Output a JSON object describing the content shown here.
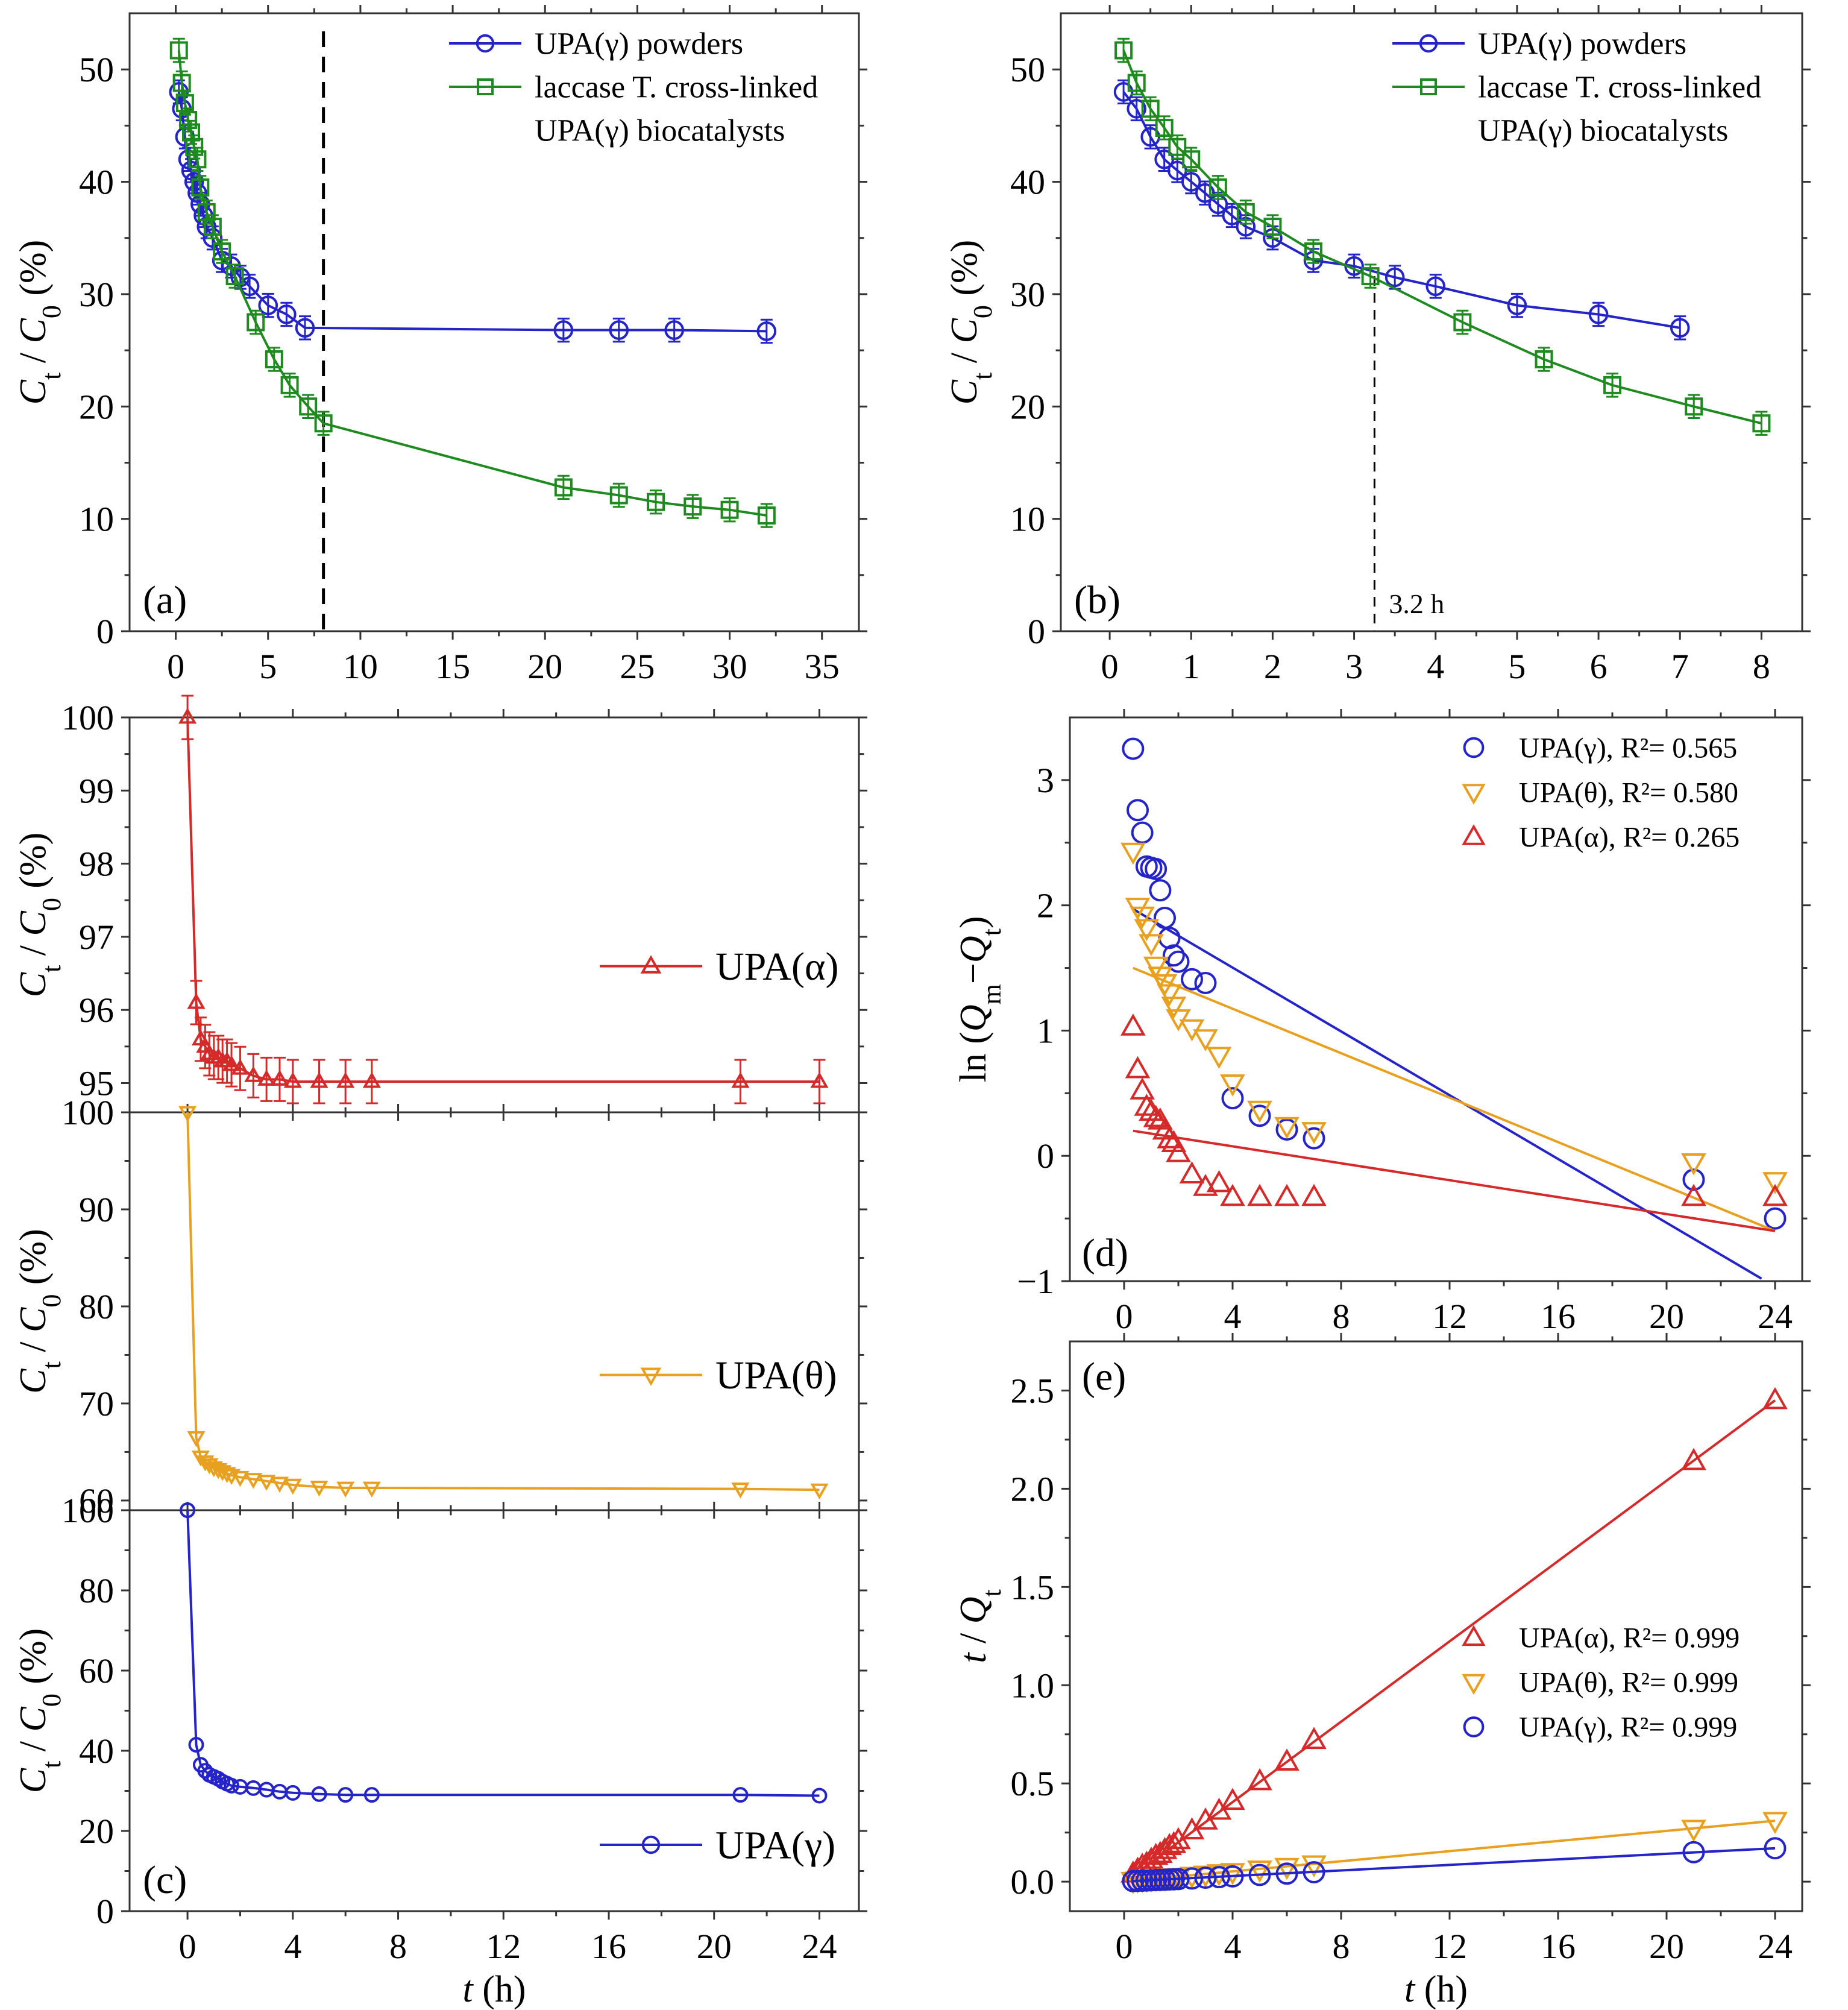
{
  "colors": {
    "blue": "#2424c8",
    "green": "#1f8a1f",
    "orange": "#e8a020",
    "red": "#d42a2a",
    "black": "#000000"
  },
  "chart_data": [
    {
      "id": "a",
      "type": "line",
      "panel_label": "(a)",
      "ylabel": "C_t / C_0 (%)",
      "xlim": [
        -2.5,
        37
      ],
      "ylim": [
        0,
        55
      ],
      "xticks": [
        0,
        5,
        10,
        15,
        20,
        25,
        30,
        35
      ],
      "yticks": [
        0,
        10,
        20,
        30,
        40,
        50
      ],
      "legend_position": "top-right",
      "reference_line": {
        "x": 8
      },
      "series": [
        {
          "name": "UPA(γ) powders",
          "color": "blue",
          "marker": "circle",
          "errorbars": true,
          "connect": true,
          "x": [
            0.17,
            0.33,
            0.5,
            0.67,
            0.83,
            1,
            1.17,
            1.33,
            1.5,
            1.67,
            2,
            2.5,
            3,
            3.5,
            4,
            5,
            6,
            7,
            21,
            24,
            27,
            32
          ],
          "y": [
            48,
            46.5,
            44,
            42,
            41,
            40,
            39,
            38,
            37,
            36,
            35,
            33,
            32.5,
            31.5,
            30.7,
            29,
            28.2,
            27,
            26.8,
            26.8,
            26.8,
            26.7
          ]
        },
        {
          "name": "laccase T. cross-linked UPA(γ) biocatalysts",
          "color": "green",
          "marker": "square",
          "errorbars": true,
          "connect": true,
          "x": [
            0.17,
            0.33,
            0.5,
            0.67,
            0.83,
            1,
            1.17,
            1.33,
            1.67,
            2,
            2.5,
            3.2,
            4.33,
            5.33,
            6.17,
            7.17,
            8,
            21,
            24,
            26,
            28,
            30,
            32
          ],
          "y": [
            51.7,
            48.8,
            47,
            45.5,
            44.4,
            43.1,
            42,
            39.5,
            37.3,
            36,
            33.8,
            31.6,
            27.5,
            24.2,
            21.9,
            20,
            18.5,
            12.8,
            12.1,
            11.5,
            11.1,
            10.8,
            10.3
          ]
        }
      ]
    },
    {
      "id": "b",
      "type": "line",
      "panel_label": "(b)",
      "ylabel": "C_t / C_0 (%)",
      "xlim": [
        -0.6,
        8.5
      ],
      "ylim": [
        0,
        55
      ],
      "xticks": [
        0,
        1,
        2,
        3,
        4,
        5,
        6,
        7,
        8
      ],
      "yticks": [
        0,
        10,
        20,
        30,
        40,
        50
      ],
      "legend_position": "top-right",
      "reference_line": {
        "x": 3.25,
        "label": "3.2 h"
      },
      "series": [
        {
          "name": "UPA(γ) powders",
          "color": "blue",
          "marker": "circle",
          "errorbars": true,
          "connect": true,
          "x": [
            0.17,
            0.33,
            0.5,
            0.67,
            0.83,
            1,
            1.17,
            1.33,
            1.5,
            1.67,
            2,
            2.5,
            3,
            3.5,
            4,
            5,
            6,
            7
          ],
          "y": [
            48,
            46.5,
            44,
            42,
            41,
            40,
            39,
            38,
            37,
            36,
            35,
            33,
            32.5,
            31.5,
            30.7,
            29,
            28.2,
            27
          ]
        },
        {
          "name": "laccase T. cross-linked UPA(γ) biocatalysts",
          "color": "green",
          "marker": "square",
          "errorbars": true,
          "connect": true,
          "x": [
            0.17,
            0.33,
            0.5,
            0.67,
            0.83,
            1,
            1.33,
            1.67,
            2,
            2.5,
            3.2,
            4.33,
            5.33,
            6.17,
            7.17,
            8
          ],
          "y": [
            51.7,
            48.8,
            46.5,
            44.8,
            43.1,
            42,
            39.5,
            37.3,
            36,
            33.8,
            31.6,
            27.5,
            24.2,
            21.9,
            20,
            18.5
          ]
        }
      ]
    },
    {
      "id": "c1",
      "type": "line",
      "ylabel": "C_t / C_0 (%)",
      "xlim": [
        -2.2,
        25.5
      ],
      "ylim": [
        94.6,
        100
      ],
      "xticks": [
        0,
        4,
        8,
        12,
        16,
        20,
        24
      ],
      "yticks": [
        95,
        96,
        97,
        98,
        99,
        100
      ],
      "legend_position": "right",
      "series": [
        {
          "name": "UPA(α)",
          "color": "red",
          "marker": "triangle-up",
          "errorbars": true,
          "connect": true,
          "x": [
            0,
            0.33,
            0.5,
            0.67,
            0.83,
            1,
            1.17,
            1.33,
            1.5,
            1.67,
            2,
            2.5,
            3,
            3.5,
            4,
            5,
            6,
            7,
            21,
            24
          ],
          "y": [
            100,
            96.1,
            95.6,
            95.5,
            95.4,
            95.35,
            95.35,
            95.3,
            95.3,
            95.25,
            95.2,
            95.1,
            95.05,
            95.05,
            95.02,
            95.02,
            95.02,
            95.02,
            95.02,
            95.02
          ]
        }
      ]
    },
    {
      "id": "c2",
      "type": "line",
      "ylabel": "C_t / C_0 (%)",
      "xlim": [
        -2.2,
        25.5
      ],
      "ylim": [
        59,
        100
      ],
      "xticks": [
        0,
        4,
        8,
        12,
        16,
        20,
        24
      ],
      "yticks": [
        60,
        70,
        80,
        90,
        100
      ],
      "legend_position": "right",
      "series": [
        {
          "name": "UPA(θ)",
          "color": "orange",
          "marker": "triangle-down",
          "errorbars": false,
          "connect": true,
          "x": [
            0,
            0.33,
            0.5,
            0.67,
            0.83,
            1,
            1.17,
            1.33,
            1.5,
            1.67,
            2,
            2.5,
            3,
            3.5,
            4,
            5,
            6,
            7,
            21,
            24
          ],
          "y": [
            100,
            66.5,
            64.5,
            64,
            63.7,
            63.4,
            63.2,
            63,
            62.8,
            62.6,
            62.4,
            62.2,
            62,
            61.8,
            61.6,
            61.4,
            61.3,
            61.3,
            61.2,
            61.1
          ]
        }
      ]
    },
    {
      "id": "c3",
      "type": "line",
      "panel_label": "(c)",
      "ylabel": "C_t / C_0 (%)",
      "xlabel": "t (h)",
      "xlim": [
        -2.2,
        25.5
      ],
      "ylim": [
        0,
        100
      ],
      "xticks": [
        0,
        4,
        8,
        12,
        16,
        20,
        24
      ],
      "yticks": [
        0,
        20,
        40,
        60,
        80,
        100
      ],
      "legend_position": "bottom-right",
      "series": [
        {
          "name": "UPA(γ)",
          "color": "blue",
          "marker": "circle",
          "errorbars": false,
          "connect": true,
          "x": [
            0,
            0.33,
            0.5,
            0.67,
            0.83,
            1,
            1.17,
            1.33,
            1.5,
            1.67,
            2,
            2.5,
            3,
            3.5,
            4,
            5,
            6,
            7,
            21,
            24
          ],
          "y": [
            100,
            41.5,
            36.5,
            35,
            34,
            33.5,
            33,
            32.3,
            31.8,
            31.3,
            31,
            30.7,
            30.3,
            29.8,
            29.5,
            29.2,
            29,
            29,
            29,
            28.8
          ]
        }
      ]
    },
    {
      "id": "d",
      "type": "scatter",
      "panel_label": "(d)",
      "ylabel": "ln (Q_m−Q_t)",
      "xlim": [
        -2,
        25
      ],
      "ylim": [
        -1,
        3.5
      ],
      "xticks": [
        0,
        4,
        8,
        12,
        16,
        20,
        24
      ],
      "yticks": [
        -1,
        0,
        1,
        2,
        3
      ],
      "legend_position": "top-right",
      "series": [
        {
          "name": "UPA(γ), R²= 0.565",
          "color": "blue",
          "marker": "circle",
          "fit": [
            0.33,
            1.97,
            23.5,
            -0.98
          ],
          "x": [
            0.33,
            0.5,
            0.67,
            0.83,
            1,
            1.17,
            1.33,
            1.5,
            1.67,
            1.83,
            2,
            2.5,
            3,
            4,
            5,
            6,
            7,
            21,
            24
          ],
          "y": [
            3.25,
            2.76,
            2.58,
            2.31,
            2.3,
            2.29,
            2.12,
            1.9,
            1.74,
            1.6,
            1.55,
            1.41,
            1.38,
            0.46,
            0.32,
            0.21,
            0.14,
            -0.19,
            -0.5
          ]
        },
        {
          "name": "UPA(θ), R²= 0.580",
          "color": "orange",
          "marker": "triangle-down",
          "fit": [
            0.33,
            1.5,
            24,
            -0.6
          ],
          "x": [
            0.33,
            0.5,
            0.67,
            0.83,
            1,
            1.17,
            1.33,
            1.5,
            1.67,
            1.83,
            2,
            2.5,
            3,
            3.5,
            4,
            5,
            6,
            7,
            21,
            24
          ],
          "y": [
            2.43,
            1.99,
            1.92,
            1.82,
            1.7,
            1.52,
            1.44,
            1.38,
            1.3,
            1.2,
            1.1,
            1.02,
            0.94,
            0.8,
            0.58,
            0.37,
            0.24,
            0.2,
            -0.05,
            -0.2
          ]
        },
        {
          "name": "UPA(α), R²= 0.265",
          "color": "red",
          "marker": "triangle-up",
          "fit": [
            0.33,
            0.2,
            24,
            -0.6
          ],
          "x": [
            0.33,
            0.5,
            0.67,
            0.83,
            1,
            1.17,
            1.33,
            1.5,
            1.67,
            1.83,
            2,
            2.5,
            3,
            3.5,
            4,
            5,
            6,
            7,
            21,
            24
          ],
          "y": [
            1.03,
            0.69,
            0.52,
            0.39,
            0.35,
            0.3,
            0.28,
            0.2,
            0.13,
            0.1,
            0.02,
            -0.15,
            -0.25,
            -0.22,
            -0.33,
            -0.33,
            -0.33,
            -0.33,
            -0.33,
            -0.33
          ]
        }
      ]
    },
    {
      "id": "e",
      "type": "scatter",
      "panel_label": "(e)",
      "ylabel": "t / Q_t",
      "xlabel": "t (h)",
      "xlim": [
        -2,
        25
      ],
      "ylim": [
        -0.15,
        2.75
      ],
      "xticks": [
        0,
        4,
        8,
        12,
        16,
        20,
        24
      ],
      "yticks": [
        0.0,
        0.5,
        1.0,
        1.5,
        2.0,
        2.5
      ],
      "legend_position": "right",
      "series": [
        {
          "name": "UPA(α), R²= 0.999",
          "color": "red",
          "marker": "triangle-up",
          "fit": [
            0.33,
            0.03,
            24,
            2.45
          ],
          "x": [
            0.33,
            0.5,
            0.67,
            0.83,
            1,
            1.17,
            1.33,
            1.5,
            1.67,
            1.83,
            2,
            2.5,
            3,
            3.5,
            4,
            5,
            6,
            7,
            21,
            24
          ],
          "y": [
            0.04,
            0.06,
            0.08,
            0.09,
            0.11,
            0.13,
            0.14,
            0.16,
            0.18,
            0.19,
            0.21,
            0.26,
            0.31,
            0.36,
            0.41,
            0.51,
            0.61,
            0.72,
            2.14,
            2.45
          ]
        },
        {
          "name": "UPA(θ), R²= 0.999",
          "color": "orange",
          "marker": "triangle-down",
          "fit": [
            0.33,
            0.005,
            24,
            0.31
          ],
          "x": [
            0.33,
            0.5,
            0.67,
            0.83,
            1,
            1.17,
            1.33,
            1.5,
            1.67,
            1.83,
            2,
            2.5,
            3,
            3.5,
            4,
            5,
            6,
            7,
            21,
            24
          ],
          "y": [
            0.005,
            0.007,
            0.009,
            0.011,
            0.013,
            0.015,
            0.017,
            0.019,
            0.021,
            0.023,
            0.025,
            0.031,
            0.037,
            0.044,
            0.05,
            0.063,
            0.076,
            0.089,
            0.27,
            0.31
          ]
        },
        {
          "name": "UPA(γ), R²= 0.999",
          "color": "blue",
          "marker": "circle",
          "fit": [
            0.33,
            0.003,
            24,
            0.17
          ],
          "x": [
            0.33,
            0.5,
            0.67,
            0.83,
            1,
            1.17,
            1.33,
            1.5,
            1.67,
            1.83,
            2,
            2.5,
            3,
            3.5,
            4,
            5,
            6,
            7,
            21,
            24
          ],
          "y": [
            0.003,
            0.004,
            0.005,
            0.006,
            0.007,
            0.008,
            0.009,
            0.01,
            0.011,
            0.012,
            0.013,
            0.016,
            0.02,
            0.023,
            0.027,
            0.034,
            0.041,
            0.048,
            0.15,
            0.17
          ]
        }
      ]
    }
  ]
}
